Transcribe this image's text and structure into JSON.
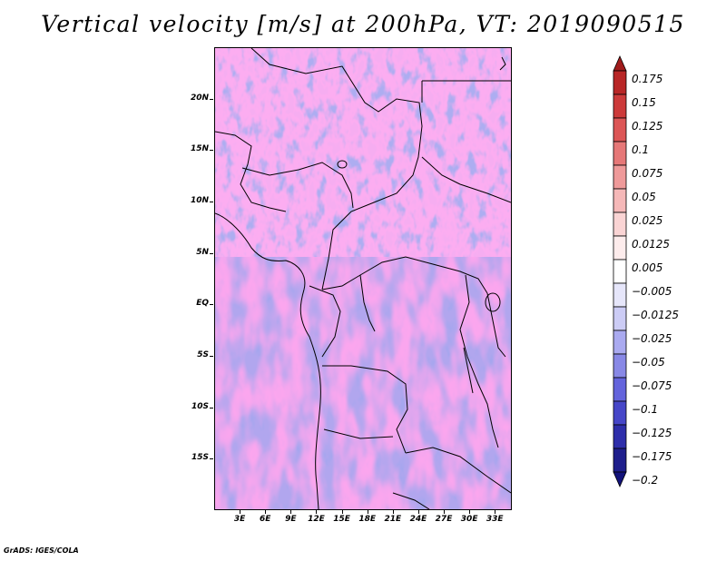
{
  "title": "Vertical velocity [m/s] at 200hPa, VT: 2019090515",
  "credit": "GrADS: IGES/COLA",
  "map": {
    "lon_range": [
      0,
      35
    ],
    "lat_range": [
      -20,
      25
    ],
    "lat_labels": [
      {
        "lat": 20,
        "text": "20N"
      },
      {
        "lat": 15,
        "text": "15N"
      },
      {
        "lat": 10,
        "text": "10N"
      },
      {
        "lat": 5,
        "text": "5N"
      },
      {
        "lat": 0,
        "text": "EQ"
      },
      {
        "lat": -5,
        "text": "5S"
      },
      {
        "lat": -10,
        "text": "10S"
      },
      {
        "lat": -15,
        "text": "15S"
      }
    ],
    "lon_labels": [
      {
        "lon": 3,
        "text": "3E"
      },
      {
        "lon": 6,
        "text": "6E"
      },
      {
        "lon": 9,
        "text": "9E"
      },
      {
        "lon": 12,
        "text": "12E"
      },
      {
        "lon": 15,
        "text": "15E"
      },
      {
        "lon": 18,
        "text": "18E"
      },
      {
        "lon": 21,
        "text": "21E"
      },
      {
        "lon": 24,
        "text": "24E"
      },
      {
        "lon": 27,
        "text": "27E"
      },
      {
        "lon": 30,
        "text": "30E"
      },
      {
        "lon": 33,
        "text": "33E"
      }
    ]
  },
  "colorbar": {
    "levels": [
      "0.175",
      "0.15",
      "0.125",
      "0.1",
      "0.075",
      "0.05",
      "0.025",
      "0.0125",
      "0.005",
      "−0.005",
      "−0.0125",
      "−0.025",
      "−0.05",
      "−0.075",
      "−0.1",
      "−0.125",
      "−0.175",
      "−0.2"
    ],
    "colors": [
      "#a01c1c",
      "#b82626",
      "#cc3a3a",
      "#dc5656",
      "#e67878",
      "#ef9a9a",
      "#f5b8b8",
      "#fad4d4",
      "#fdecec",
      "#ffffff",
      "#e6e6fa",
      "#ccccf5",
      "#aaaaf0",
      "#8888e6",
      "#6464dc",
      "#4646c8",
      "#2e2eaa",
      "#1e1e8c",
      "#12127a"
    ]
  }
}
